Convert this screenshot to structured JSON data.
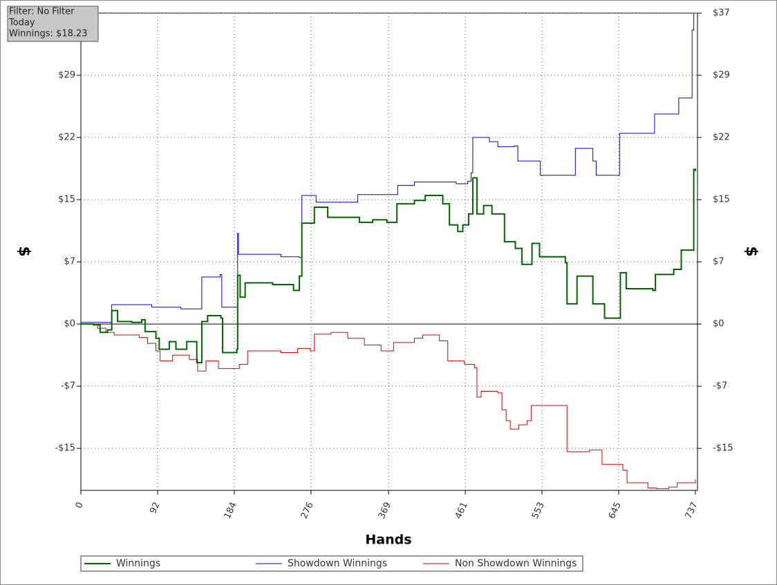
{
  "chart_data": {
    "type": "line",
    "filter_box": [
      "Filter: No Filter",
      "Today",
      "Winnings: $18.23"
    ],
    "xlabel": "Hands",
    "ylabel": "$",
    "y2label": "$",
    "xlim": [
      0,
      737
    ],
    "xticks": [
      0,
      92,
      184,
      276,
      369,
      461,
      553,
      645,
      737
    ],
    "ylim": [
      -19.8,
      37
    ],
    "yticks": [
      {
        "value": -14.8,
        "label": "-$15"
      },
      {
        "value": -7.4,
        "label": "-$7"
      },
      {
        "value": 0,
        "label": "$0"
      },
      {
        "value": 7.4,
        "label": "$7"
      },
      {
        "value": 14.8,
        "label": "$15"
      },
      {
        "value": 22.2,
        "label": "$22"
      },
      {
        "value": 29.6,
        "label": "$29"
      },
      {
        "value": 37,
        "label": "$37"
      }
    ],
    "grid": true,
    "series": [
      {
        "name": "Winnings",
        "color": "#006400",
        "x": [
          0,
          15,
          23,
          32,
          37,
          44,
          61,
          73,
          77,
          90,
          94,
          106,
          114,
          127,
          139,
          145,
          152,
          168,
          170,
          187,
          188,
          191,
          197,
          230,
          255,
          262,
          265,
          280,
          296,
          334,
          350,
          367,
          379,
          400,
          413,
          434,
          442,
          452,
          458,
          465,
          470,
          475,
          483,
          493,
          508,
          521,
          529,
          541,
          550,
          581,
          583,
          593,
          595,
          610,
          614,
          624,
          628,
          643,
          647,
          654,
          686,
          689,
          711,
          720,
          732,
          735,
          737
        ],
        "values": [
          0,
          -0.1,
          -1,
          -0.7,
          1.6,
          0.3,
          0.2,
          0.5,
          -0.9,
          -1.7,
          -3,
          -2.1,
          -3,
          -2.1,
          -4.6,
          0.3,
          1,
          0.7,
          -3.4,
          -3,
          5.8,
          3.2,
          4.9,
          4.7,
          4,
          5.7,
          12,
          13.9,
          12.7,
          12.1,
          12.4,
          12.1,
          14.3,
          14.7,
          15.3,
          14.3,
          11.8,
          11,
          11.8,
          13.1,
          17.4,
          13.1,
          14.1,
          13.1,
          9.8,
          9,
          7.1,
          9.6,
          8,
          7.3,
          2.4,
          2.4,
          5.7,
          5.7,
          2.4,
          2.4,
          0.7,
          0.7,
          6.1,
          4.2,
          4,
          5.9,
          6.5,
          8.8,
          8.8,
          18.4,
          18.2
        ]
      },
      {
        "name": "Showdown Winnings",
        "color": "#0000cc",
        "x": [
          0,
          35,
          37,
          85,
          120,
          145,
          167,
          169,
          186,
          188,
          189,
          240,
          262,
          265,
          282,
          330,
          332,
          380,
          400,
          450,
          464,
          468,
          470,
          490,
          500,
          520,
          524,
          545,
          551,
          590,
          593,
          610,
          614,
          618,
          645,
          646,
          685,
          688,
          715,
          717,
          730,
          733,
          735
        ],
        "values": [
          0.2,
          0.2,
          2.3,
          2,
          1.8,
          5.6,
          5.9,
          2,
          2,
          10.8,
          8.3,
          8,
          7.9,
          15.3,
          14.5,
          14.5,
          15.4,
          16.5,
          16.9,
          16.7,
          17,
          18,
          22.2,
          21.7,
          21.1,
          21.2,
          19.4,
          19.4,
          17.7,
          17.7,
          20.9,
          20.9,
          19.4,
          17.7,
          17.7,
          22.7,
          22.7,
          25,
          25,
          26.9,
          26.9,
          35,
          37
        ]
      },
      {
        "name": "Non Showdown Winnings",
        "color": "#dd0000",
        "x": [
          0,
          20,
          30,
          40,
          70,
          80,
          90,
          95,
          110,
          130,
          140,
          150,
          165,
          190,
          200,
          240,
          260,
          275,
          280,
          300,
          320,
          340,
          360,
          375,
          400,
          410,
          430,
          440,
          460,
          472,
          475,
          480,
          500,
          505,
          510,
          515,
          525,
          535,
          540,
          580,
          583,
          610,
          625,
          650,
          655,
          680,
          690,
          705,
          715,
          737
        ],
        "values": [
          0,
          -0.5,
          -1,
          -1.3,
          -1.6,
          -2.3,
          -3.2,
          -4.4,
          -3.7,
          -4.2,
          -5.6,
          -4.4,
          -5.3,
          -4.8,
          -3.2,
          -3.4,
          -2.9,
          -3.2,
          -1.2,
          -1,
          -1.7,
          -2.5,
          -3.2,
          -2.2,
          -1.7,
          -1.3,
          -2,
          -4.4,
          -4.8,
          -5.2,
          -8.7,
          -8,
          -8.2,
          -10.2,
          -11.5,
          -12.5,
          -12,
          -11.5,
          -9.7,
          -9.7,
          -15.2,
          -15,
          -16.7,
          -17.4,
          -18.9,
          -19.5,
          -19.6,
          -19.4,
          -18.9,
          -18.5
        ]
      }
    ]
  }
}
